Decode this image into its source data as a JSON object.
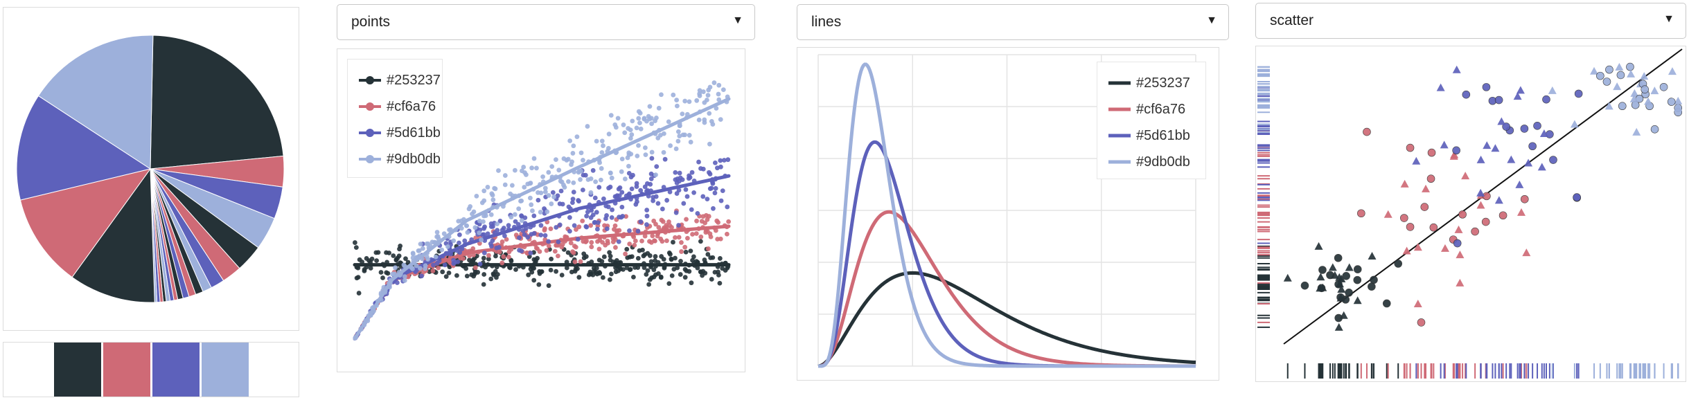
{
  "palette": [
    "#253237",
    "#cf6a76",
    "#5d61bb",
    "#9db0db"
  ],
  "pie": {
    "chart_data": {
      "type": "pie",
      "slice_colors": [
        "#253237",
        "#cf6a76",
        "#5d61bb",
        "#9db0db",
        "#253237",
        "#cf6a76",
        "#5d61bb",
        "#9db0db",
        "#253237",
        "#cf6a76",
        "#5d61bb",
        "#253237",
        "#cf6a76",
        "#5d61bb",
        "#9db0db",
        "#253237",
        "#cf6a76",
        "#5d61bb",
        "#9db0db",
        "#253237",
        "#cf6a76",
        "#5d61bb",
        "#9db0db"
      ],
      "values": [
        25.0,
        4.0,
        4.2,
        4.3,
        3.6,
        2.6,
        1.8,
        1.2,
        1.0,
        0.9,
        0.8,
        0.7,
        0.5,
        0.5,
        0.5,
        0.4,
        0.4,
        0.4,
        0.3,
        11.3,
        12.2,
        14.0,
        17.4
      ]
    },
    "swatches": [
      "#ffffff",
      "#253237",
      "#cf6a76",
      "#5d61bb",
      "#9db0db",
      "#ffffff"
    ]
  },
  "points": {
    "selector_value": "points",
    "legend": [
      "#253237",
      "#cf6a76",
      "#5d61bb",
      "#9db0db"
    ],
    "chart_data": {
      "type": "scatter",
      "x_range": [
        0,
        1
      ],
      "y_range": [
        0,
        1
      ],
      "series": [
        {
          "color": "#253237",
          "trend": [
            [
              0,
              0.3
            ],
            [
              1,
              0.3
            ]
          ],
          "spread": 0.05
        },
        {
          "color": "#cf6a76",
          "trend": [
            [
              0,
              0.05
            ],
            [
              0.1,
              0.25
            ],
            [
              0.3,
              0.34
            ],
            [
              0.6,
              0.39
            ],
            [
              1,
              0.43
            ]
          ],
          "spread": 0.05
        },
        {
          "color": "#5d61bb",
          "trend": [
            [
              0,
              0.05
            ],
            [
              0.1,
              0.25
            ],
            [
              0.3,
              0.37
            ],
            [
              0.6,
              0.49
            ],
            [
              1,
              0.6
            ]
          ],
          "spread": 0.09
        },
        {
          "color": "#9db0db",
          "trend": [
            [
              0,
              0.05
            ],
            [
              0.1,
              0.25
            ],
            [
              0.3,
              0.45
            ],
            [
              0.6,
              0.63
            ],
            [
              1,
              0.86
            ]
          ],
          "spread": 0.1
        }
      ]
    }
  },
  "lines": {
    "selector_value": "lines",
    "legend": [
      "#253237",
      "#cf6a76",
      "#5d61bb",
      "#9db0db"
    ],
    "chart_data": {
      "type": "line",
      "x_range": [
        0,
        8
      ],
      "y_range": [
        0,
        1
      ],
      "series": [
        {
          "color": "#253237",
          "shape": 3,
          "scale": 1.0
        },
        {
          "color": "#cf6a76",
          "shape": 4,
          "scale": 0.5
        },
        {
          "color": "#5d61bb",
          "shape": 5,
          "scale": 0.3
        },
        {
          "color": "#9db0db",
          "shape": 6,
          "scale": 0.2
        }
      ]
    }
  },
  "scatter": {
    "selector_value": "scatter",
    "chart_data": {
      "type": "scatter",
      "x_range": [
        0,
        1
      ],
      "y_range": [
        0,
        1
      ],
      "series": [
        {
          "color": "#253237",
          "center": [
            0.13,
            0.2
          ],
          "spread": 0.06
        },
        {
          "color": "#cf6a76",
          "center": [
            0.4,
            0.45
          ],
          "spread": 0.12
        },
        {
          "color": "#5d61bb",
          "center": [
            0.6,
            0.68
          ],
          "spread": 0.12
        },
        {
          "color": "#9db0db",
          "center": [
            0.9,
            0.85
          ],
          "spread": 0.06
        }
      ],
      "markers": [
        "circle",
        "triangle"
      ],
      "reference_line": [
        [
          0,
          0
        ],
        [
          1,
          1
        ]
      ]
    }
  },
  "icons": {
    "dropdown": "chevron-down-icon"
  }
}
